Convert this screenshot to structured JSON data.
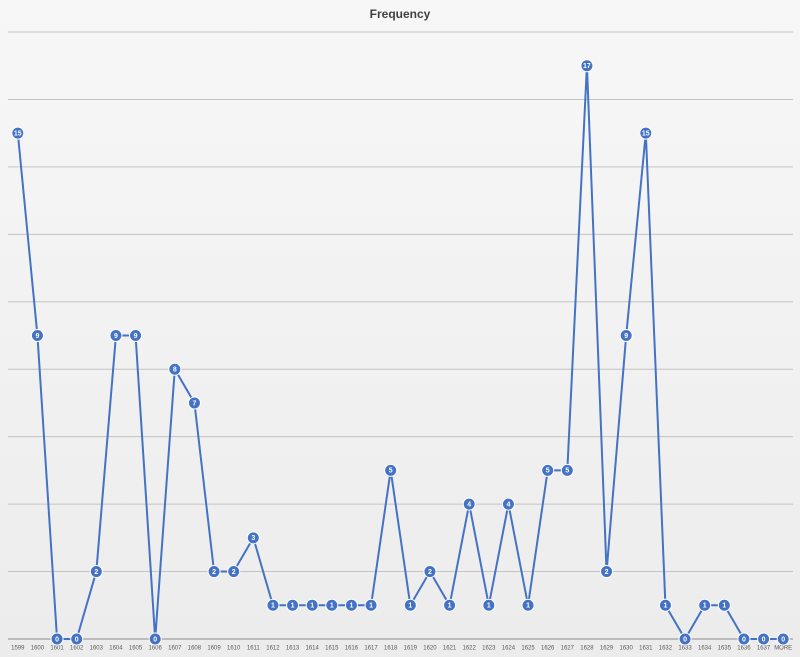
{
  "chart_data": {
    "type": "line",
    "title": "Frequency",
    "categories": [
      "1599",
      "1600",
      "1601",
      "1602",
      "1603",
      "1604",
      "1605",
      "1606",
      "1607",
      "1608",
      "1609",
      "1610",
      "1611",
      "1612",
      "1613",
      "1614",
      "1615",
      "1616",
      "1617",
      "1618",
      "1619",
      "1620",
      "1621",
      "1622",
      "1623",
      "1624",
      "1625",
      "1626",
      "1627",
      "1628",
      "1629",
      "1630",
      "1631",
      "1632",
      "1633",
      "1634",
      "1635",
      "1636",
      "1637",
      "MORE"
    ],
    "values": [
      15,
      9,
      0,
      0,
      2,
      9,
      9,
      0,
      8,
      7,
      2,
      2,
      3,
      1,
      1,
      1,
      1,
      1,
      1,
      5,
      1,
      2,
      1,
      4,
      1,
      4,
      1,
      5,
      5,
      17,
      2,
      9,
      15,
      1,
      0,
      1,
      1,
      0,
      0,
      0
    ],
    "color": "#4472c4",
    "ylim": [
      0,
      18
    ],
    "yticks": [
      0,
      2,
      4,
      6,
      8,
      10,
      12,
      14,
      16,
      18
    ],
    "grid": true
  }
}
